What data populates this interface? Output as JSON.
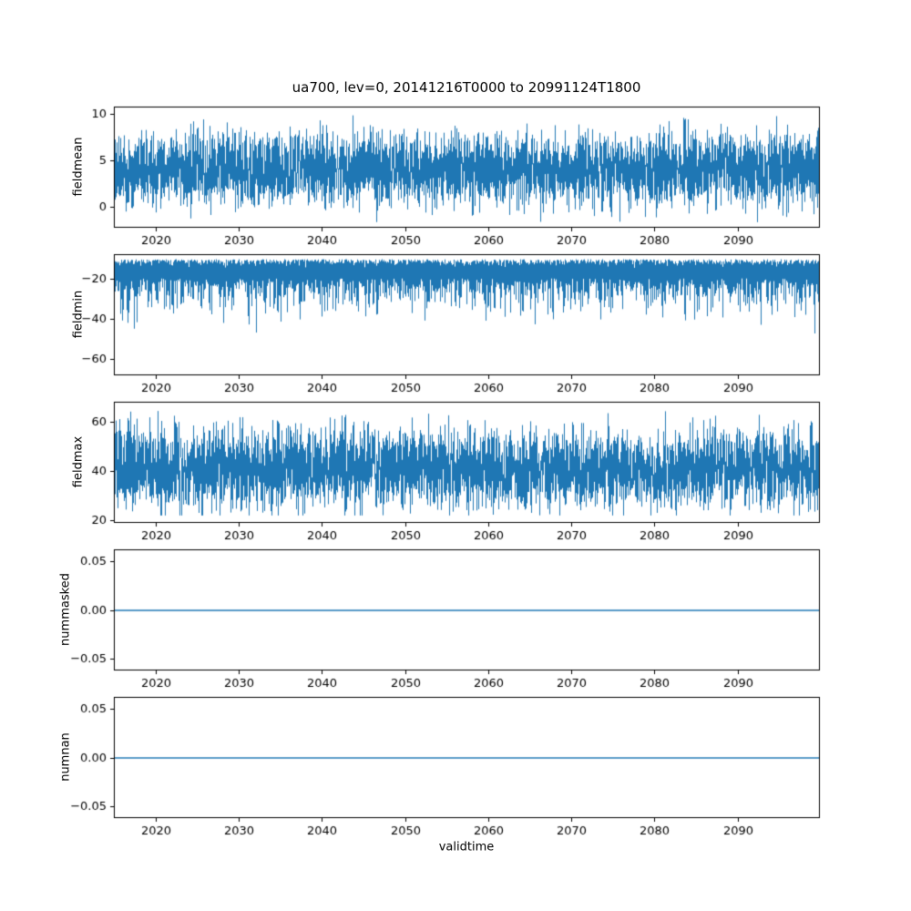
{
  "figure": {
    "title": "ua700, lev=0, 20141216T0000 to 20991124T1800",
    "xlabel": "validtime",
    "background": "#ffffff",
    "line_color": "#1f77b4",
    "x": {
      "range": [
        2014.96,
        2099.9
      ],
      "ticks": [
        {
          "v": 2020,
          "label": "2020"
        },
        {
          "v": 2030,
          "label": "2030"
        },
        {
          "v": 2040,
          "label": "2040"
        },
        {
          "v": 2050,
          "label": "2050"
        },
        {
          "v": 2060,
          "label": "2060"
        },
        {
          "v": 2070,
          "label": "2070"
        },
        {
          "v": 2080,
          "label": "2080"
        },
        {
          "v": 2090,
          "label": "2090"
        }
      ]
    }
  },
  "chart_data": [
    {
      "type": "line",
      "name": "fieldmean",
      "ylabel": "fieldmean",
      "ylim": [
        -2.2,
        10.8
      ],
      "yticks": [
        {
          "v": 0,
          "label": "0"
        },
        {
          "v": 5,
          "label": "5"
        },
        {
          "v": 10,
          "label": "10"
        }
      ],
      "series": {
        "kind": "noise",
        "mean": 4.1,
        "sd": 1.9,
        "clip": [
          -1.6,
          10.2
        ],
        "samples": 6,
        "seed": 101
      }
    },
    {
      "type": "line",
      "name": "fieldmin",
      "ylabel": "fieldmin",
      "ylim": [
        -68,
        -8
      ],
      "yticks": [
        {
          "v": -20,
          "label": "−20"
        },
        {
          "v": -40,
          "label": "−40"
        },
        {
          "v": -60,
          "label": "−60"
        }
      ],
      "series": {
        "kind": "noise-asym",
        "top_mean": -10.5,
        "top_sd": 1.4,
        "base": -20,
        "depth_sd": 9,
        "spike_prob": 0.02,
        "spike_extra": 18,
        "clip": [
          -65.5,
          -9.2
        ],
        "seed": 202
      }
    },
    {
      "type": "line",
      "name": "fieldmax",
      "ylabel": "fieldmax",
      "ylim": [
        19,
        68
      ],
      "yticks": [
        {
          "v": 20,
          "label": "20"
        },
        {
          "v": 40,
          "label": "40"
        },
        {
          "v": 60,
          "label": "60"
        }
      ],
      "series": {
        "kind": "noise",
        "mean": 41,
        "sd": 8,
        "clip": [
          22,
          67
        ],
        "samples": 6,
        "seed": 303
      }
    },
    {
      "type": "line",
      "name": "nummasked",
      "ylabel": "nummasked",
      "ylim": [
        -0.0625,
        0.0625
      ],
      "yticks": [
        {
          "v": 0.05,
          "label": "0.05"
        },
        {
          "v": 0.0,
          "label": "0.00"
        },
        {
          "v": -0.05,
          "label": "−0.05"
        }
      ],
      "series": {
        "kind": "constant",
        "value": 0
      }
    },
    {
      "type": "line",
      "name": "numnan",
      "ylabel": "numnan",
      "ylim": [
        -0.0625,
        0.0625
      ],
      "yticks": [
        {
          "v": 0.05,
          "label": "0.05"
        },
        {
          "v": 0.0,
          "label": "0.00"
        },
        {
          "v": -0.05,
          "label": "−0.05"
        }
      ],
      "series": {
        "kind": "constant",
        "value": 0
      }
    }
  ]
}
